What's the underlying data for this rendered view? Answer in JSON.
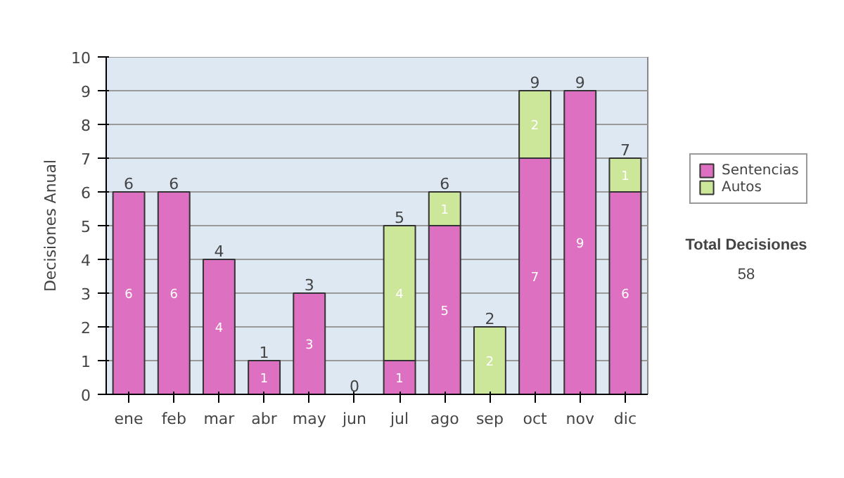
{
  "chart_data": {
    "type": "bar",
    "stacked": true,
    "ylabel": "Decisiones Anual",
    "categories": [
      "ene",
      "feb",
      "mar",
      "abr",
      "may",
      "jun",
      "jul",
      "ago",
      "sep",
      "oct",
      "nov",
      "dic"
    ],
    "series": [
      {
        "name": "Sentencias",
        "color": "#dd70c0",
        "values": [
          6,
          6,
          4,
          1,
          3,
          0,
          1,
          5,
          0,
          7,
          9,
          6
        ],
        "value_labels": [
          "6",
          "6",
          "4",
          "1",
          "3",
          null,
          "1",
          "5",
          null,
          "7",
          "9",
          "6"
        ]
      },
      {
        "name": "Autos",
        "color": "#cce69a",
        "values": [
          0,
          0,
          0,
          0,
          0,
          0,
          4,
          1,
          2,
          2,
          0,
          1
        ],
        "value_labels": [
          null,
          null,
          null,
          null,
          null,
          null,
          "4",
          "1",
          "2",
          "2",
          null,
          "1"
        ]
      }
    ],
    "totals": [
      "6",
      "6",
      "4",
      "1",
      "3",
      "0",
      "5",
      "6",
      "2",
      "9",
      "9",
      "7"
    ],
    "ylim": [
      0,
      10
    ],
    "yticks": [
      0,
      1,
      2,
      3,
      4,
      5,
      6,
      7,
      8,
      9,
      10
    ],
    "grid": "y",
    "legend": "right",
    "annotations": [
      "Total Decisiones",
      "58"
    ]
  }
}
